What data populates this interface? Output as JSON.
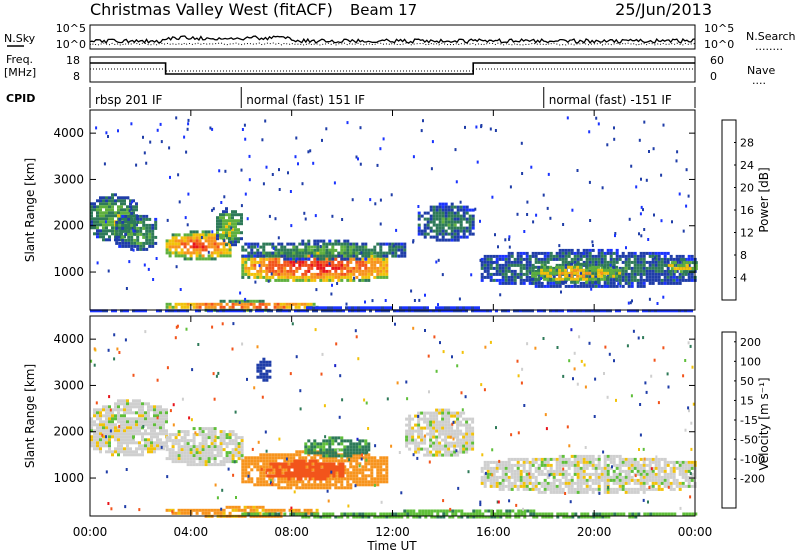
{
  "header": {
    "title": "Christmas Valley West (fitACF)",
    "beam": "Beam 17",
    "date": "25/Jun/2013"
  },
  "summary": {
    "nsky_label": "N.Sky",
    "nsearch_label": "N.Search",
    "nsearch_legend": "........",
    "freq_label_1": "Freq.",
    "freq_label_2": "[MHz]",
    "nave_label": "Nave",
    "nave_legend": "....",
    "cpid_label": "CPID",
    "noise_ticks": [
      "10^5",
      "10^0"
    ],
    "freq_ticks": [
      "18",
      "8"
    ],
    "nave_ticks": [
      "60",
      "0"
    ],
    "cpid_segments": [
      {
        "label": "rbsp 201 IF",
        "start_h": 0
      },
      {
        "label": "normal (fast) 151 IF",
        "start_h": 6.0
      },
      {
        "label": "normal (fast) -151 IF",
        "start_h": 18.0
      }
    ]
  },
  "axes": {
    "xlabel": "Time UT",
    "x_ticks": [
      "00:00",
      "04:00",
      "08:00",
      "12:00",
      "16:00",
      "20:00",
      "00:00"
    ],
    "ylabel": "Slant Range [km]",
    "y_ticks": [
      "1000",
      "2000",
      "3000",
      "4000"
    ]
  },
  "colorbars": {
    "power": {
      "label": "Power [dB]",
      "ticks": [
        "4",
        "8",
        "12",
        "16",
        "20",
        "24",
        "28"
      ],
      "colors": [
        "#1a33ff",
        "#1f3da8",
        "#2e7a58",
        "#5fb03e",
        "#f2c20a",
        "#f7941d",
        "#f2541b",
        "#e8141b"
      ]
    },
    "velocity": {
      "label": "Velocity [m s⁻¹]",
      "ticks": [
        "200",
        "100",
        "50",
        "15",
        "-15",
        "-50",
        "-100",
        "-200"
      ],
      "colors": [
        "#1a22c8",
        "#1f3da8",
        "#2e7a58",
        "#5fbf3a",
        "#cfcfcf",
        "#f2c20a",
        "#f7941d",
        "#f2541b",
        "#e8141b"
      ]
    }
  },
  "chart_data": [
    {
      "type": "heatmap",
      "title": "Power",
      "xlabel": "Time UT",
      "ylabel": "Slant Range [km]",
      "xlim": [
        0,
        24
      ],
      "ylim": [
        180,
        4500
      ],
      "colorbar": {
        "label": "Power [dB]",
        "range": [
          0,
          32
        ]
      },
      "regions": [
        {
          "t0": 0.0,
          "t1": 1.8,
          "r0": 1700,
          "r1": 2700,
          "value": 14
        },
        {
          "t0": 1.0,
          "t1": 2.6,
          "r0": 1500,
          "r1": 2300,
          "value": 12
        },
        {
          "t0": 3.0,
          "t1": 5.6,
          "r0": 1300,
          "r1": 1900,
          "value": 26
        },
        {
          "t0": 5.0,
          "t1": 6.0,
          "r0": 1600,
          "r1": 2400,
          "value": 16
        },
        {
          "t0": 6.0,
          "t1": 11.8,
          "r0": 800,
          "r1": 1500,
          "value": 28
        },
        {
          "t0": 6.0,
          "t1": 12.5,
          "r0": 1300,
          "r1": 1700,
          "value": 12
        },
        {
          "t0": 13.0,
          "t1": 15.2,
          "r0": 1700,
          "r1": 2500,
          "value": 10
        },
        {
          "t0": 15.5,
          "t1": 24.0,
          "r0": 700,
          "r1": 1500,
          "value": 10
        },
        {
          "t0": 17.5,
          "t1": 21.0,
          "r0": 800,
          "r1": 1200,
          "value": 20
        },
        {
          "t0": 22.8,
          "t1": 24.0,
          "r0": 1000,
          "r1": 1300,
          "value": 18
        },
        {
          "t0": 3.0,
          "t1": 9.0,
          "r0": 200,
          "r1": 400,
          "value": 26
        },
        {
          "t0": 0.0,
          "t1": 24.0,
          "r0": 180,
          "r1": 260,
          "value": 6
        }
      ]
    },
    {
      "type": "heatmap",
      "title": "Velocity",
      "xlabel": "Time UT",
      "ylabel": "Slant Range [km]",
      "xlim": [
        0,
        24
      ],
      "ylim": [
        180,
        4500
      ],
      "colorbar": {
        "label": "Velocity [m s-1]",
        "range": [
          -200,
          200
        ]
      },
      "regions": [
        {
          "t0": 0.0,
          "t1": 3.0,
          "r0": 1500,
          "r1": 2700,
          "value": 0
        },
        {
          "t0": 3.0,
          "t1": 6.0,
          "r0": 1300,
          "r1": 2100,
          "value": 0
        },
        {
          "t0": 6.0,
          "t1": 11.8,
          "r0": 800,
          "r1": 1600,
          "value": -80
        },
        {
          "t0": 7.0,
          "t1": 10.0,
          "r0": 1000,
          "r1": 1400,
          "value": -150
        },
        {
          "t0": 8.5,
          "t1": 11.0,
          "r0": 1500,
          "r1": 1900,
          "value": 60
        },
        {
          "t0": 12.5,
          "t1": 15.2,
          "r0": 1500,
          "r1": 2500,
          "value": 0
        },
        {
          "t0": 15.5,
          "t1": 24.0,
          "r0": 700,
          "r1": 1500,
          "value": 0
        },
        {
          "t0": 6.6,
          "t1": 7.1,
          "r0": 3100,
          "r1": 3600,
          "value": 180
        },
        {
          "t0": 3.0,
          "t1": 9.0,
          "r0": 200,
          "r1": 400,
          "value": -60
        },
        {
          "t0": 6.0,
          "t1": 24.0,
          "r0": 180,
          "r1": 320,
          "value": 40
        }
      ]
    }
  ]
}
